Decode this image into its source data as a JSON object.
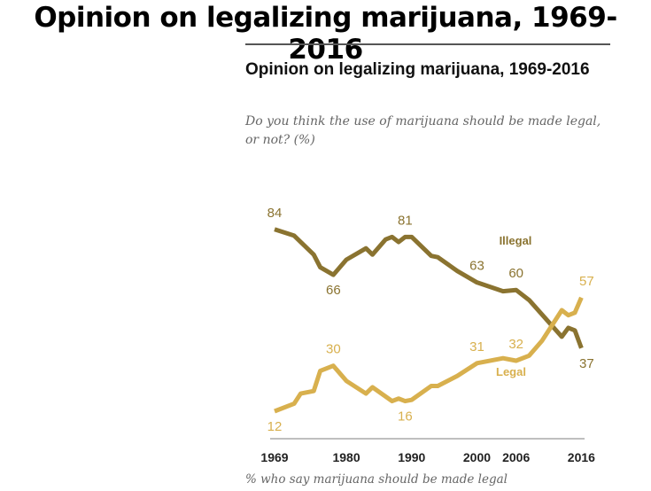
{
  "page_title": "Opinion on legalizing marijuana, 1969-2016",
  "chart_data": {
    "type": "line",
    "title": "Opinion on legalizing marijuana, 1969-2016",
    "subtitle": "Do you think the use of marijuana should be made legal, or not? (%)",
    "note": "% who say marijuana should be made legal",
    "xlim": [
      1969,
      2016
    ],
    "ylim": [
      0,
      100
    ],
    "x_ticks": [
      "1969",
      "1980",
      "1990",
      "2000",
      "2006",
      "2016"
    ],
    "grid": false,
    "colors": {
      "Illegal": "#8a7330",
      "Legal": "#d8b04e"
    },
    "series": [
      {
        "name": "Illegal",
        "points": [
          [
            1969,
            84
          ],
          [
            1972,
            81.5
          ],
          [
            1975,
            74
          ],
          [
            1976,
            69
          ],
          [
            1978,
            66
          ],
          [
            1980,
            72
          ],
          [
            1983,
            76.5
          ],
          [
            1984,
            74
          ],
          [
            1986,
            80
          ],
          [
            1987,
            81
          ],
          [
            1988,
            79
          ],
          [
            1989,
            81
          ],
          [
            1990,
            81
          ],
          [
            1993,
            73.5
          ],
          [
            1994,
            73
          ],
          [
            1997,
            67.5
          ],
          [
            2000,
            63
          ],
          [
            2004,
            59.5
          ],
          [
            2006,
            60
          ],
          [
            2008,
            56
          ],
          [
            2013,
            41.5
          ],
          [
            2014,
            45
          ],
          [
            2015,
            44
          ],
          [
            2016,
            37
          ]
        ],
        "labels": [
          {
            "year": 1969,
            "text": "84"
          },
          {
            "year": 1978,
            "text": "66"
          },
          {
            "year": 1989,
            "text": "81"
          },
          {
            "year": 2000,
            "text": "63"
          },
          {
            "year": 2006,
            "text": "60"
          },
          {
            "year": 2016,
            "text": "37"
          }
        ]
      },
      {
        "name": "Legal",
        "points": [
          [
            1969,
            12
          ],
          [
            1972,
            15
          ],
          [
            1973,
            19
          ],
          [
            1975,
            20
          ],
          [
            1976,
            28
          ],
          [
            1978,
            30
          ],
          [
            1980,
            24
          ],
          [
            1983,
            19
          ],
          [
            1984,
            21.5
          ],
          [
            1987,
            16
          ],
          [
            1988,
            17
          ],
          [
            1989,
            16
          ],
          [
            1990,
            16.5
          ],
          [
            1993,
            22
          ],
          [
            1994,
            22
          ],
          [
            1997,
            26
          ],
          [
            2000,
            31
          ],
          [
            2004,
            33
          ],
          [
            2006,
            32
          ],
          [
            2008,
            34
          ],
          [
            2010,
            40
          ],
          [
            2013,
            52
          ],
          [
            2014,
            50
          ],
          [
            2015,
            51
          ],
          [
            2016,
            57
          ]
        ],
        "labels": [
          {
            "year": 1969,
            "text": "12"
          },
          {
            "year": 1978,
            "text": "30"
          },
          {
            "year": 1989,
            "text": "16"
          },
          {
            "year": 2000,
            "text": "31"
          },
          {
            "year": 2006,
            "text": "32"
          },
          {
            "year": 2016,
            "text": "57"
          }
        ]
      }
    ]
  }
}
